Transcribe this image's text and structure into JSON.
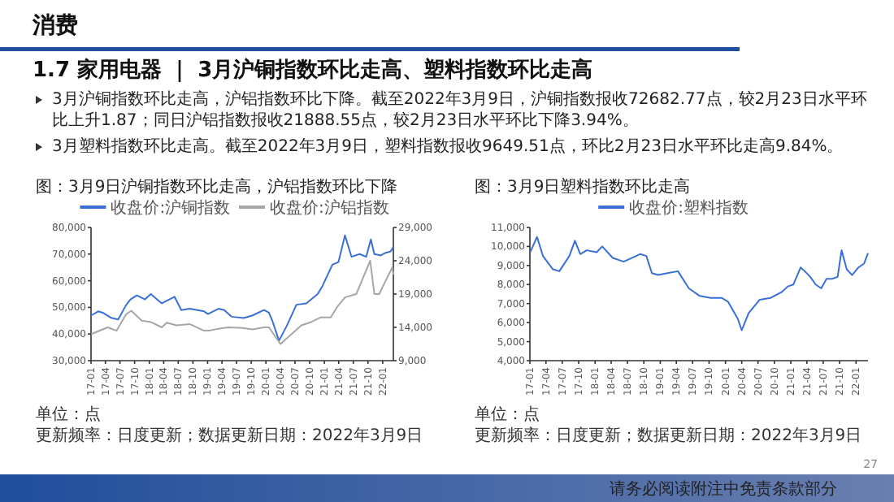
{
  "chart_data": [
    {
      "type": "other",
      "title": "1.7 家用电器 ｜ 3月沪铜指数环比走高、塑料指数环比走高",
      "annotations": [
        "消费",
        "3月沪铜指数环比走高，沪铝指数环比下降。截至2022年3月9日，沪铜指数报收72682.77点，较2月23日水平环比上升1.87；同日沪铝指数报收21888.55点，较2月23日水平环比下降3.94%。",
        "3月塑料指数环比走高。截至2022年3月9日，塑料指数报收9649.51点，环比2月23日水平环比走高9.84%。",
        "27",
        "请务必阅读附注中免责条款部分"
      ]
    },
    {
      "type": "line",
      "title": "图：3月9日沪铜指数环比走高，沪铝指数环比下降",
      "legend": "top",
      "grid": false,
      "marker": "none",
      "line_style": "solid",
      "ylim": [
        30000,
        80000
      ],
      "yticks": [
        {
          "value": 30000,
          "label": "30,000"
        },
        {
          "value": 40000,
          "label": "40,000"
        },
        {
          "value": 50000,
          "label": "50,000"
        },
        {
          "value": 60000,
          "label": "60,000"
        },
        {
          "value": 70000,
          "label": "70,000"
        },
        {
          "value": 80000,
          "label": "80,000"
        }
      ],
      "y2lim": [
        9000,
        29000
      ],
      "y2ticks": [
        {
          "value": 9000,
          "label": "9,000"
        },
        {
          "value": 14000,
          "label": "14,000"
        },
        {
          "value": 19000,
          "label": "19,000"
        },
        {
          "value": 24000,
          "label": "24,000"
        },
        {
          "value": 29000,
          "label": "29,000"
        }
      ],
      "xlim": [
        "2017-01-01",
        "2022-03-09"
      ],
      "xticks": [
        {
          "value": "2017-01",
          "label": "17-01"
        },
        {
          "value": "2017-04",
          "label": "17-04"
        },
        {
          "value": "2017-07",
          "label": "17-07"
        },
        {
          "value": "2017-10",
          "label": "17-10"
        },
        {
          "value": "2018-01",
          "label": "18-01"
        },
        {
          "value": "2018-04",
          "label": "18-04"
        },
        {
          "value": "2018-07",
          "label": "18-07"
        },
        {
          "value": "2018-10",
          "label": "18-10"
        },
        {
          "value": "2019-01",
          "label": "19-01"
        },
        {
          "value": "2019-04",
          "label": "19-04"
        },
        {
          "value": "2019-07",
          "label": "19-07"
        },
        {
          "value": "2019-10",
          "label": "19-10"
        },
        {
          "value": "2020-01",
          "label": "20-01"
        },
        {
          "value": "2020-04",
          "label": "20-04"
        },
        {
          "value": "2020-07",
          "label": "20-07"
        },
        {
          "value": "2020-10",
          "label": "20-10"
        },
        {
          "value": "2021-01",
          "label": "21-01"
        },
        {
          "value": "2021-04",
          "label": "21-04"
        },
        {
          "value": "2021-07",
          "label": "21-07"
        },
        {
          "value": "2021-10",
          "label": "21-10"
        },
        {
          "value": "2022-01",
          "label": "22-01"
        }
      ],
      "series": [
        {
          "name": "收盘价:沪铜指数",
          "color": "#3a6fd8",
          "x": [
            "2017-01-03",
            "2017-02-15",
            "2017-03-15",
            "2017-05-10",
            "2017-06-20",
            "2017-08-10",
            "2017-09-05",
            "2017-10-15",
            "2017-12-05",
            "2018-01-10",
            "2018-03-20",
            "2018-06-08",
            "2018-07-20",
            "2018-09-10",
            "2018-12-10",
            "2019-01-03",
            "2019-03-10",
            "2019-04-15",
            "2019-06-01",
            "2019-08-15",
            "2019-10-10",
            "2019-12-20",
            "2020-01-20",
            "2020-02-10",
            "2020-03-23",
            "2020-05-10",
            "2020-07-10",
            "2020-09-10",
            "2020-11-20",
            "2020-12-20",
            "2021-02-20",
            "2021-03-30",
            "2021-05-10",
            "2021-06-20",
            "2021-08-10",
            "2021-09-20",
            "2021-10-19",
            "2021-11-10",
            "2021-12-20",
            "2022-01-20",
            "2022-02-20",
            "2022-03-09"
          ],
          "values": [
            47000,
            48500,
            48000,
            46000,
            45500,
            51000,
            53000,
            54500,
            53000,
            55000,
            51500,
            54000,
            49000,
            49500,
            48500,
            47500,
            49500,
            49000,
            46500,
            46000,
            47000,
            49000,
            48000,
            45000,
            37500,
            43000,
            51000,
            51500,
            55000,
            58000,
            66000,
            67000,
            77000,
            69000,
            70000,
            69000,
            75500,
            70000,
            69500,
            70500,
            71000,
            72700
          ],
          "axis": "y"
        },
        {
          "name": "收盘价:沪铝指数",
          "color": "#a6a6a6",
          "x": [
            "2017-01-03",
            "2017-04-15",
            "2017-06-10",
            "2017-08-10",
            "2017-09-10",
            "2017-11-15",
            "2018-01-10",
            "2018-03-20",
            "2018-04-20",
            "2018-06-20",
            "2018-09-10",
            "2018-12-10",
            "2019-01-10",
            "2019-03-10",
            "2019-05-10",
            "2019-08-10",
            "2019-10-10",
            "2019-12-20",
            "2020-01-20",
            "2020-04-01",
            "2020-06-10",
            "2020-08-10",
            "2020-10-10",
            "2020-12-10",
            "2021-02-10",
            "2021-03-20",
            "2021-05-10",
            "2021-07-20",
            "2021-09-10",
            "2021-10-15",
            "2021-11-10",
            "2021-12-10",
            "2022-01-20",
            "2022-03-02",
            "2022-03-09"
          ],
          "values": [
            13000,
            14000,
            13500,
            16000,
            16500,
            15000,
            14800,
            14000,
            14700,
            14300,
            14500,
            13500,
            13500,
            13800,
            14000,
            13900,
            13700,
            14000,
            14000,
            11500,
            13000,
            14300,
            14800,
            15500,
            15500,
            17000,
            18500,
            19000,
            22000,
            24000,
            19000,
            19000,
            21000,
            23000,
            21900
          ],
          "axis": "y2"
        }
      ],
      "annotations": [
        "单位：点",
        "更新频率：日度更新；数据更新日期：2022年3月9日"
      ]
    },
    {
      "type": "line",
      "title": "图：3月9日塑料指数环比走高",
      "legend": "top",
      "grid": false,
      "marker": "none",
      "line_style": "solid",
      "ylim": [
        4000,
        11000
      ],
      "yticks": [
        {
          "value": 4000,
          "label": "4,000"
        },
        {
          "value": 5000,
          "label": "5,000"
        },
        {
          "value": 6000,
          "label": "6,000"
        },
        {
          "value": 7000,
          "label": "7,000"
        },
        {
          "value": 8000,
          "label": "8,000"
        },
        {
          "value": 9000,
          "label": "9,000"
        },
        {
          "value": 10000,
          "label": "10,000"
        },
        {
          "value": 11000,
          "label": "11,000"
        }
      ],
      "xlim": [
        "2017-01-01",
        "2022-03-09"
      ],
      "xticks": [
        {
          "value": "2017-01",
          "label": "17-01"
        },
        {
          "value": "2017-04",
          "label": "17-04"
        },
        {
          "value": "2017-07",
          "label": "17-07"
        },
        {
          "value": "2017-10",
          "label": "17-10"
        },
        {
          "value": "2018-01",
          "label": "18-01"
        },
        {
          "value": "2018-04",
          "label": "18-04"
        },
        {
          "value": "2018-07",
          "label": "18-07"
        },
        {
          "value": "2018-10",
          "label": "18-10"
        },
        {
          "value": "2019-01",
          "label": "19-01"
        },
        {
          "value": "2019-04",
          "label": "19-04"
        },
        {
          "value": "2019-07",
          "label": "19-07"
        },
        {
          "value": "2019-10",
          "label": "19-10"
        },
        {
          "value": "2020-01",
          "label": "20-01"
        },
        {
          "value": "2020-04",
          "label": "20-04"
        },
        {
          "value": "2020-07",
          "label": "20-07"
        },
        {
          "value": "2020-10",
          "label": "20-10"
        },
        {
          "value": "2021-01",
          "label": "21-01"
        },
        {
          "value": "2021-04",
          "label": "21-04"
        },
        {
          "value": "2021-07",
          "label": "21-07"
        },
        {
          "value": "2021-10",
          "label": "21-10"
        },
        {
          "value": "2022-01",
          "label": "22-01"
        }
      ],
      "series": [
        {
          "name": "收盘价:塑料指数",
          "color": "#3a6fd8",
          "x": [
            "2017-01-03",
            "2017-02-10",
            "2017-03-15",
            "2017-05-10",
            "2017-06-15",
            "2017-08-10",
            "2017-09-10",
            "2017-10-10",
            "2017-11-15",
            "2018-01-10",
            "2018-02-10",
            "2018-04-10",
            "2018-06-10",
            "2018-09-10",
            "2018-10-15",
            "2018-11-15",
            "2018-12-20",
            "2019-02-10",
            "2019-04-10",
            "2019-06-10",
            "2019-08-10",
            "2019-10-10",
            "2019-12-10",
            "2020-01-15",
            "2020-03-10",
            "2020-04-01",
            "2020-05-10",
            "2020-07-10",
            "2020-09-10",
            "2020-11-10",
            "2020-12-15",
            "2021-01-15",
            "2021-02-25",
            "2021-03-20",
            "2021-04-20",
            "2021-05-20",
            "2021-06-20",
            "2021-07-20",
            "2021-08-20",
            "2021-09-20",
            "2021-10-12",
            "2021-11-10",
            "2021-12-10",
            "2022-01-15",
            "2022-02-15",
            "2022-03-09"
          ],
          "values": [
            9700,
            10500,
            9500,
            8800,
            8700,
            9500,
            10300,
            9600,
            9800,
            9700,
            10000,
            9400,
            9200,
            9600,
            9500,
            8600,
            8500,
            8600,
            8700,
            7800,
            7400,
            7300,
            7300,
            7100,
            6200,
            5600,
            6500,
            7200,
            7300,
            7600,
            7900,
            8000,
            8900,
            8700,
            8400,
            8000,
            7800,
            8300,
            8300,
            8400,
            9800,
            8800,
            8500,
            8900,
            9100,
            9650
          ]
        }
      ],
      "annotations": [
        "单位：点",
        "更新频率：日度更新；数据更新日期：2022年3月9日"
      ]
    }
  ]
}
